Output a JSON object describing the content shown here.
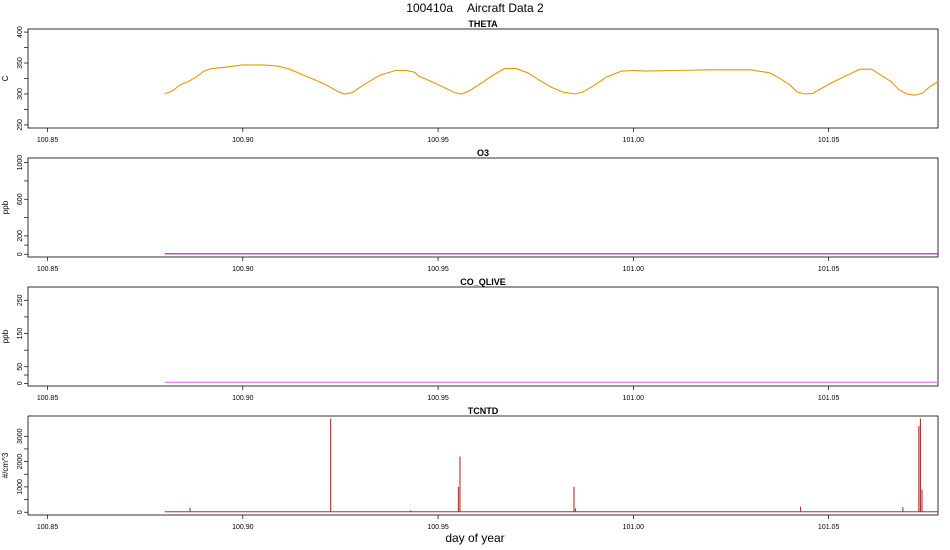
{
  "title": {
    "id": "100410a",
    "text": "Aircraft Data 2"
  },
  "xlabel": "day of year",
  "chart_data": [
    {
      "type": "line",
      "title": "THETA",
      "ylabel": "C",
      "ylim": [
        245,
        405
      ],
      "yticks": [
        250,
        300,
        350,
        400
      ],
      "xlim": [
        100.845,
        101.078
      ],
      "xticks": [
        100.85,
        100.9,
        100.95,
        101.0,
        101.05
      ],
      "xtick_labels": [
        "100.85",
        "100.90",
        "100.95",
        "101.00",
        "101.05"
      ],
      "color": "#e69a00",
      "series": [
        {
          "x": [
            100.88,
            100.882,
            100.884,
            100.886,
            100.888,
            100.89,
            100.892,
            100.895,
            100.9,
            100.905,
            100.909,
            100.912,
            100.915,
            100.918,
            100.921,
            100.924,
            100.926,
            100.928,
            100.931,
            100.935,
            100.939,
            100.942,
            100.944,
            100.945,
            100.948,
            100.951,
            100.954,
            100.956,
            100.958,
            100.961,
            100.964,
            100.967,
            100.97,
            100.973,
            100.976,
            100.979,
            100.982,
            100.985,
            100.987,
            100.99,
            100.993,
            100.997,
            101.0,
            101.003,
            101.01,
            101.02,
            101.03,
            101.035,
            101.037,
            101.04,
            101.042,
            101.044,
            101.046,
            101.049,
            101.052,
            101.055,
            101.058,
            101.061,
            101.063,
            101.066,
            101.068,
            101.07,
            101.072,
            101.074,
            101.076,
            101.078
          ],
          "y": [
            300,
            305,
            315,
            320,
            327,
            337,
            341,
            343,
            347,
            347,
            345,
            340,
            332,
            324,
            316,
            305,
            300,
            302,
            315,
            330,
            338,
            338,
            335,
            329,
            321,
            312,
            303,
            300,
            305,
            317,
            330,
            341,
            341,
            334,
            322,
            311,
            303,
            300,
            303,
            314,
            327,
            337,
            338,
            337,
            338,
            339,
            339,
            334,
            327,
            315,
            303,
            300,
            301,
            312,
            322,
            331,
            340,
            340,
            332,
            320,
            307,
            300,
            298,
            301,
            312,
            320
          ]
        }
      ]
    },
    {
      "type": "line",
      "title": "O3",
      "ylabel": "ppb",
      "ylim": [
        -30,
        1050
      ],
      "yticks": [
        0,
        200,
        600,
        1000
      ],
      "xlim": [
        100.845,
        101.078
      ],
      "xticks": [
        100.85,
        100.9,
        100.95,
        101.0,
        101.05
      ],
      "xtick_labels": [
        "100.85",
        "100.90",
        "100.95",
        "101.00",
        "101.05"
      ],
      "color": "#9b1fa0",
      "series": [
        {
          "x": [
            100.88,
            101.078
          ],
          "y": [
            5,
            5
          ]
        }
      ]
    },
    {
      "type": "line",
      "title": "CO_QLIVE",
      "ylabel": "ppb",
      "ylim": [
        -8,
        290
      ],
      "yticks": [
        0,
        50,
        150,
        250
      ],
      "xlim": [
        100.845,
        101.078
      ],
      "xticks": [
        100.85,
        100.9,
        100.95,
        101.0,
        101.05
      ],
      "xtick_labels": [
        "100.85",
        "100.90",
        "100.95",
        "101.00",
        "101.05"
      ],
      "color": "#d27bd8",
      "series": [
        {
          "x": [
            100.88,
            101.078
          ],
          "y": [
            3,
            3
          ]
        }
      ]
    },
    {
      "type": "line",
      "title": "TCNTD",
      "ylabel": "#/cm^3",
      "ylim": [
        -110,
        3800
      ],
      "yticks": [
        0,
        1000,
        2000,
        3000
      ],
      "xlim": [
        100.845,
        101.078
      ],
      "xticks": [
        100.85,
        100.9,
        100.95,
        101.0,
        101.05
      ],
      "xtick_labels": [
        "100.85",
        "100.90",
        "100.95",
        "101.00",
        "101.05"
      ],
      "color": "#a83232",
      "baseline": 20,
      "xstart": 100.88,
      "spikes": [
        {
          "x": 100.8865,
          "y": 180
        },
        {
          "x": 100.9225,
          "y": 3700
        },
        {
          "x": 100.943,
          "y": 80
        },
        {
          "x": 100.9552,
          "y": 1000
        },
        {
          "x": 100.9556,
          "y": 2200
        },
        {
          "x": 100.9848,
          "y": 1000
        },
        {
          "x": 100.9852,
          "y": 150
        },
        {
          "x": 101.0428,
          "y": 220
        },
        {
          "x": 101.069,
          "y": 200
        },
        {
          "x": 101.0731,
          "y": 3400
        },
        {
          "x": 101.0735,
          "y": 3700
        },
        {
          "x": 101.0739,
          "y": 900
        }
      ]
    }
  ]
}
